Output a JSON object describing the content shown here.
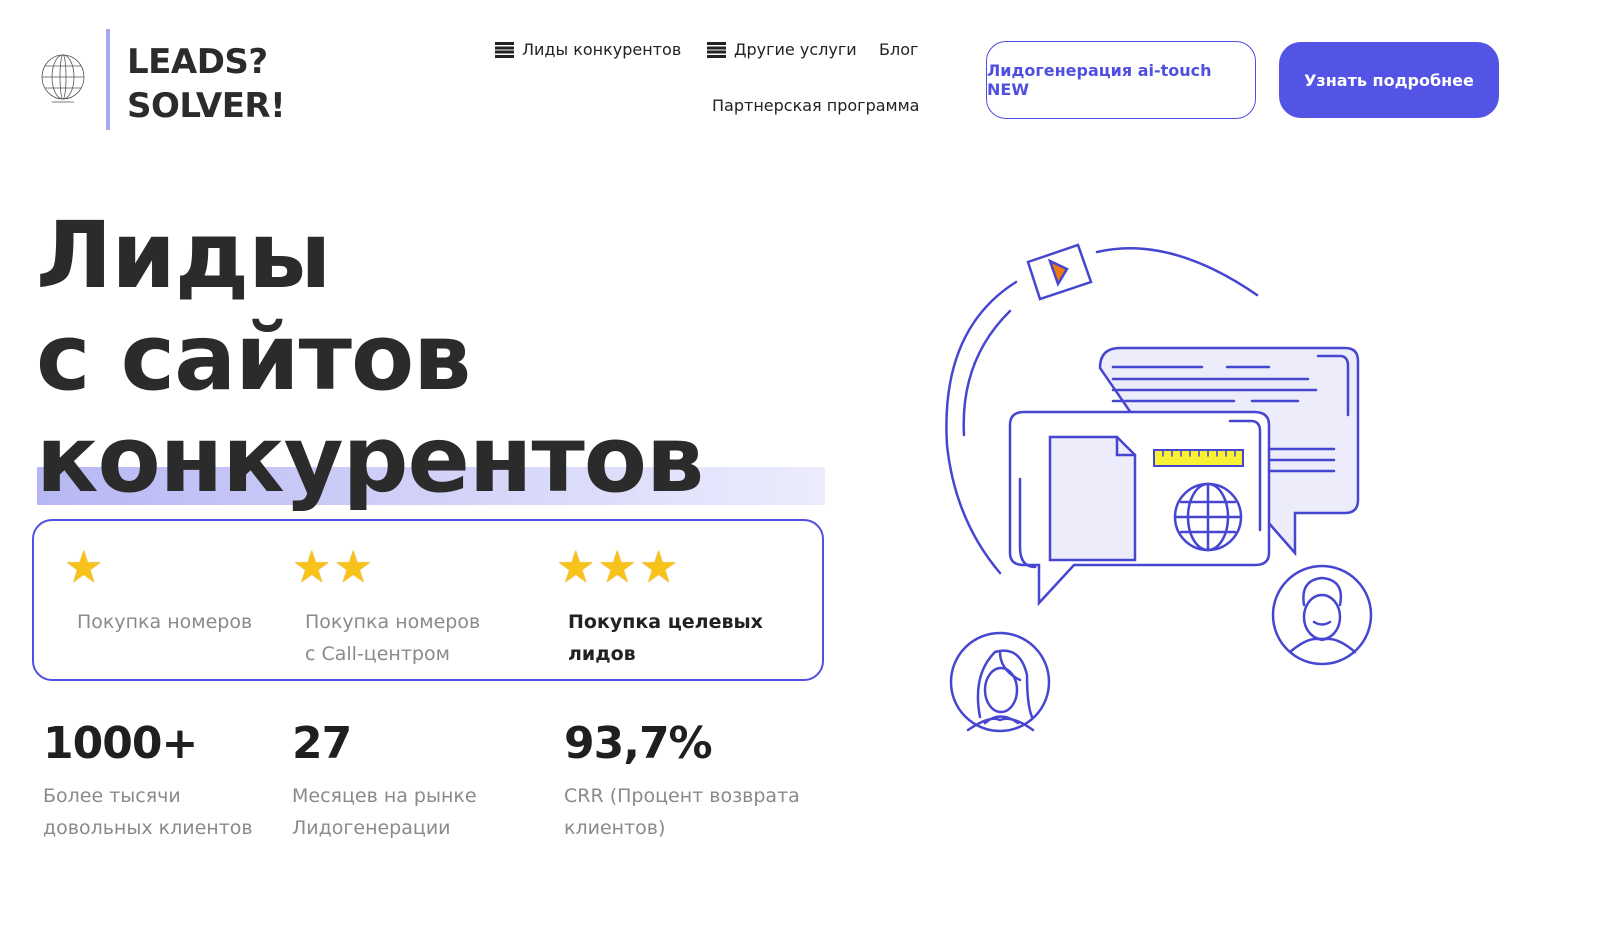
{
  "header": {
    "logo_line1": "LEADS?",
    "logo_line2": "SOLVER!",
    "logo_icon": "globe-icon",
    "nav": [
      {
        "label": "Лиды конкурентов",
        "icon": "menu-icon"
      },
      {
        "label": "Другие услуги",
        "icon": "menu-icon"
      },
      {
        "label": "Блог"
      },
      {
        "label": "Партнерская программа"
      }
    ],
    "outline_button": "Лидогенерация ai-touch NEW",
    "cta_button": "Узнать подробнее"
  },
  "hero": {
    "title_lines": [
      "Лиды",
      "с сайтов",
      "конкурентов"
    ],
    "levels": [
      {
        "stars": 1,
        "lines": [
          "Покупка номеров"
        ]
      },
      {
        "stars": 2,
        "lines": [
          "Покупка номеров",
          "с Call-центром"
        ]
      },
      {
        "stars": 3,
        "lines": [
          "Покупка целевых",
          "лидов"
        ]
      }
    ],
    "stats": [
      {
        "value": "1000+",
        "lines": [
          "Более тысячи",
          "довольных клиентов"
        ]
      },
      {
        "value": "27",
        "lines": [
          "Месяцев на рынке",
          "Лидогенерации"
        ]
      },
      {
        "value": "93,7%",
        "lines": [
          "CRR (Процент возврата",
          "клиентов)"
        ]
      }
    ]
  },
  "colors": {
    "accent": "#5353e6",
    "illustration": "#4646d0",
    "highlight": "#b7b7f4",
    "star": "#f7c21a",
    "play": "#f07a10",
    "ruler": "#f8f032"
  }
}
